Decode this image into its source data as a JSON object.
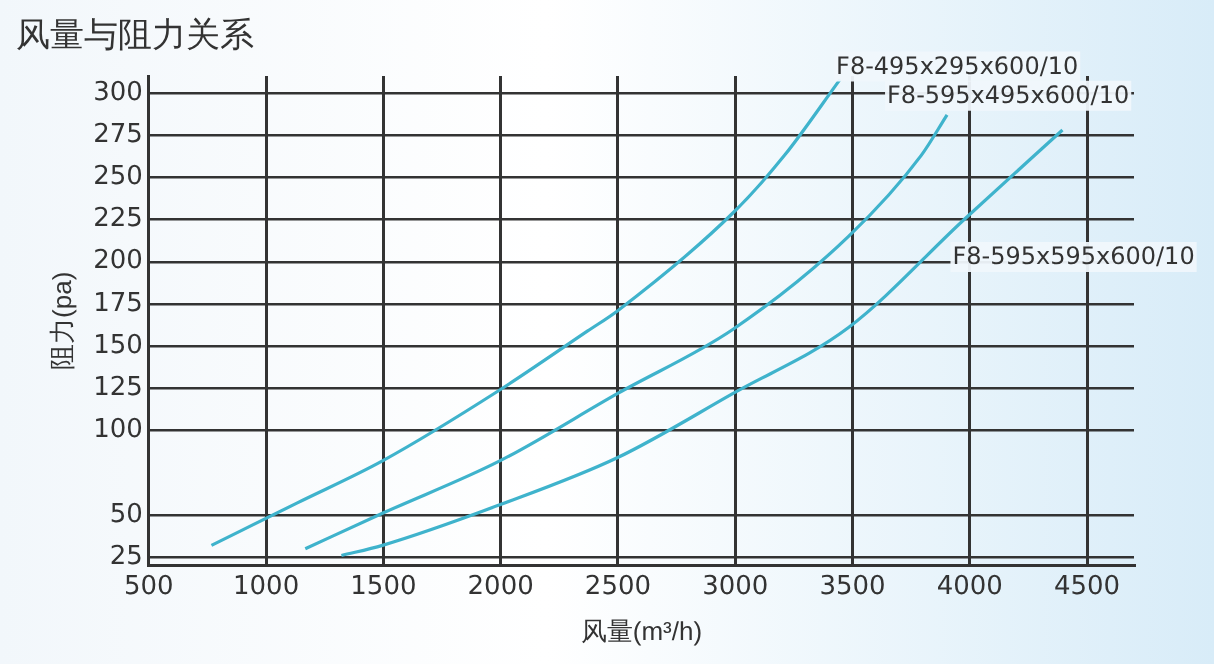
{
  "chart_data": {
    "type": "line",
    "title": "风量与阻力关系",
    "xlabel": "风量(m³/h)",
    "ylabel": "阻力(pa)",
    "xlim": [
      500,
      4700
    ],
    "xticks": [
      500,
      1000,
      1500,
      2000,
      2500,
      3000,
      3500,
      4000,
      4500
    ],
    "ylim": [
      20,
      310
    ],
    "yticks": [
      25,
      50,
      100,
      125,
      150,
      175,
      200,
      225,
      250,
      275,
      300
    ],
    "grid": true,
    "legend": false,
    "marker": "none",
    "line_style": "solid",
    "series": [
      {
        "name": "F8-495x295x600/10",
        "color": "#3fb3cc",
        "x": [
          767,
          1131,
          1496,
          1996,
          2371,
          2499,
          2991,
          3210,
          3447
        ],
        "values": [
          32,
          57,
          82,
          124,
          159,
          171,
          229,
          263,
          308
        ]
      },
      {
        "name": "F8-595x495x600/10",
        "color": "#3fb3cc",
        "x": [
          1167,
          1496,
          1996,
          2499,
          2991,
          3483,
          3793,
          3903
        ],
        "values": [
          30,
          51,
          82,
          122,
          160,
          215,
          263,
          287
        ]
      },
      {
        "name": "F8-595x595x600/10",
        "color": "#3fb3cc",
        "x": [
          1321,
          1496,
          1996,
          2499,
          2991,
          3483,
          3976,
          4395
        ],
        "values": [
          26,
          32,
          56,
          84,
          122,
          161,
          225,
          278
        ]
      }
    ]
  }
}
